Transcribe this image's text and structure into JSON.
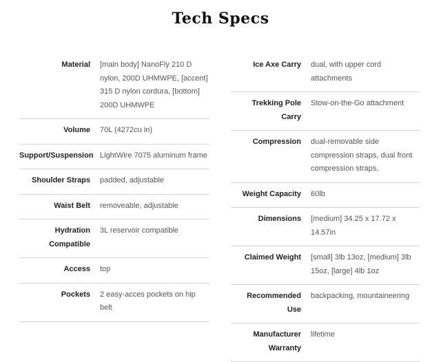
{
  "title": "Tech Specs",
  "left_specs": [
    {
      "label": "Material",
      "value": "[main body] NanoFly 210 D nylon, 200D UHMWPE, [accent] 315 D nylon cordura, [bottom] 200D UHMWPE"
    },
    {
      "label": "Volume",
      "value": "70L (4272cu in)"
    },
    {
      "label": "Support/Suspension",
      "value": "LightWire 7075 aluminum frame"
    },
    {
      "label": "Shoulder Straps",
      "value": "padded, adjustable"
    },
    {
      "label": "Waist Belt",
      "value": "removeable, adjustable"
    },
    {
      "label": "Hydration Compatible",
      "value": "3L reservoir compatible"
    },
    {
      "label": "Access",
      "value": "top"
    },
    {
      "label": "Pockets",
      "value": "2 easy-acces pockets on hip belt"
    }
  ],
  "right_specs": [
    {
      "label": "Ice Axe Carry",
      "value": "dual, with upper cord attachments"
    },
    {
      "label": "Trekking Pole Carry",
      "value": "Stow-on-the-Go attachment"
    },
    {
      "label": "Compression",
      "value": "dual-removable side compression straps, dual front compression straps,"
    },
    {
      "label": "Weight Capacity",
      "value": "60lb"
    },
    {
      "label": "Dimensions",
      "value": "[medium] 34.25 x 17.72 x 14.57in"
    },
    {
      "label": "Claimed Weight",
      "value": "[small] 3lb 13oz, [medium] 3lb 15oz, [large] 4lb 1oz"
    },
    {
      "label": "Recommended Use",
      "value": "backpacking, mountaineering"
    },
    {
      "label": "Manufacturer Warranty",
      "value": "lifetime"
    }
  ]
}
